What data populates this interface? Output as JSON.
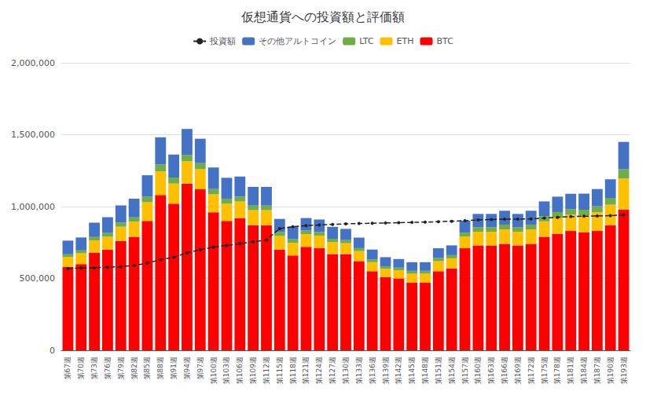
{
  "chart_data": {
    "type": "bar",
    "title": "仮想通貨への投資額と評価額",
    "stacked": true,
    "grid": true,
    "legend": "top",
    "ylim": [
      0,
      2000000
    ],
    "yticks": [
      0,
      {
        "value": 500000,
        "label": "500,000"
      },
      {
        "value": 1000000,
        "label": "1,000,000"
      },
      {
        "value": 1500000,
        "label": "1,500,000"
      },
      {
        "value": 2000000,
        "label": "2,000,000"
      }
    ],
    "categories": [
      "第67週",
      "第70週",
      "第73週",
      "第76週",
      "第79週",
      "第82週",
      "第85週",
      "第88週",
      "第91週",
      "第94週",
      "第97週",
      "第100週",
      "第103週",
      "第106週",
      "第109週",
      "第112週",
      "第115週",
      "第118週",
      "第121週",
      "第124週",
      "第127週",
      "第130週",
      "第133週",
      "第136週",
      "第139週",
      "第142週",
      "第145週",
      "第148週",
      "第151週",
      "第154週",
      "第157週",
      "第160週",
      "第163週",
      "第166週",
      "第169週",
      "第172週",
      "第175週",
      "第178週",
      "第181週",
      "第184週",
      "第187週",
      "第190週",
      "第193週"
    ],
    "series": [
      {
        "name": "BTC",
        "type": "bar",
        "color": "#FF0000",
        "values": [
          580000,
          600000,
          680000,
          700000,
          760000,
          790000,
          900000,
          1080000,
          1020000,
          1160000,
          1120000,
          960000,
          900000,
          920000,
          870000,
          870000,
          700000,
          660000,
          720000,
          710000,
          670000,
          670000,
          620000,
          550000,
          510000,
          500000,
          470000,
          470000,
          550000,
          570000,
          710000,
          730000,
          730000,
          740000,
          730000,
          740000,
          790000,
          810000,
          830000,
          820000,
          830000,
          870000,
          980000
        ]
      },
      {
        "name": "ETH",
        "type": "bar",
        "color": "#FFC000",
        "values": [
          70000,
          75000,
          85000,
          90000,
          100000,
          105000,
          130000,
          165000,
          140000,
          155000,
          140000,
          125000,
          120000,
          115000,
          105000,
          105000,
          95000,
          88000,
          88000,
          88000,
          82000,
          75000,
          70000,
          63000,
          57000,
          57000,
          63000,
          63000,
          70000,
          70000,
          82000,
          95000,
          95000,
          100000,
          95000,
          100000,
          107000,
          113000,
          113000,
          118000,
          130000,
          143000,
          215000
        ]
      },
      {
        "name": "LTC",
        "type": "bar",
        "color": "#70AD47",
        "values": [
          18000,
          20000,
          23000,
          26000,
          28000,
          30000,
          38000,
          47000,
          42000,
          45000,
          42000,
          37000,
          35000,
          34000,
          32000,
          32000,
          27000,
          25000,
          25000,
          25000,
          24000,
          22000,
          21000,
          20000,
          18000,
          18000,
          20000,
          20000,
          22000,
          22000,
          27000,
          32000,
          32000,
          34000,
          32000,
          34000,
          37000,
          39000,
          39000,
          40000,
          42000,
          47000,
          65000
        ]
      },
      {
        "name": "その他アルトコイン",
        "type": "bar",
        "color": "#4472C4",
        "values": [
          95000,
          90000,
          100000,
          110000,
          120000,
          130000,
          150000,
          190000,
          160000,
          180000,
          170000,
          150000,
          145000,
          140000,
          130000,
          130000,
          92000,
          87000,
          87000,
          87000,
          83000,
          78000,
          73000,
          68000,
          63000,
          60000,
          60000,
          60000,
          68000,
          68000,
          83000,
          92000,
          92000,
          97000,
          92000,
          97000,
          102000,
          107000,
          107000,
          112000,
          120000,
          130000,
          190000
        ]
      },
      {
        "name": "投資額",
        "type": "line",
        "color": "#222222",
        "marker": "circle",
        "line_style": "dashed",
        "values": [
          570000,
          572000,
          574000,
          578000,
          582000,
          590000,
          607000,
          630000,
          648000,
          678000,
          700000,
          718000,
          730000,
          742000,
          754000,
          768000,
          847000,
          860000,
          868000,
          872000,
          876000,
          880000,
          882000,
          884000,
          886000,
          888000,
          890000,
          892000,
          895000,
          898000,
          902000,
          907000,
          910000,
          912000,
          913000,
          914000,
          920000,
          925000,
          930000,
          933000,
          935000,
          937000,
          942000
        ]
      }
    ]
  }
}
